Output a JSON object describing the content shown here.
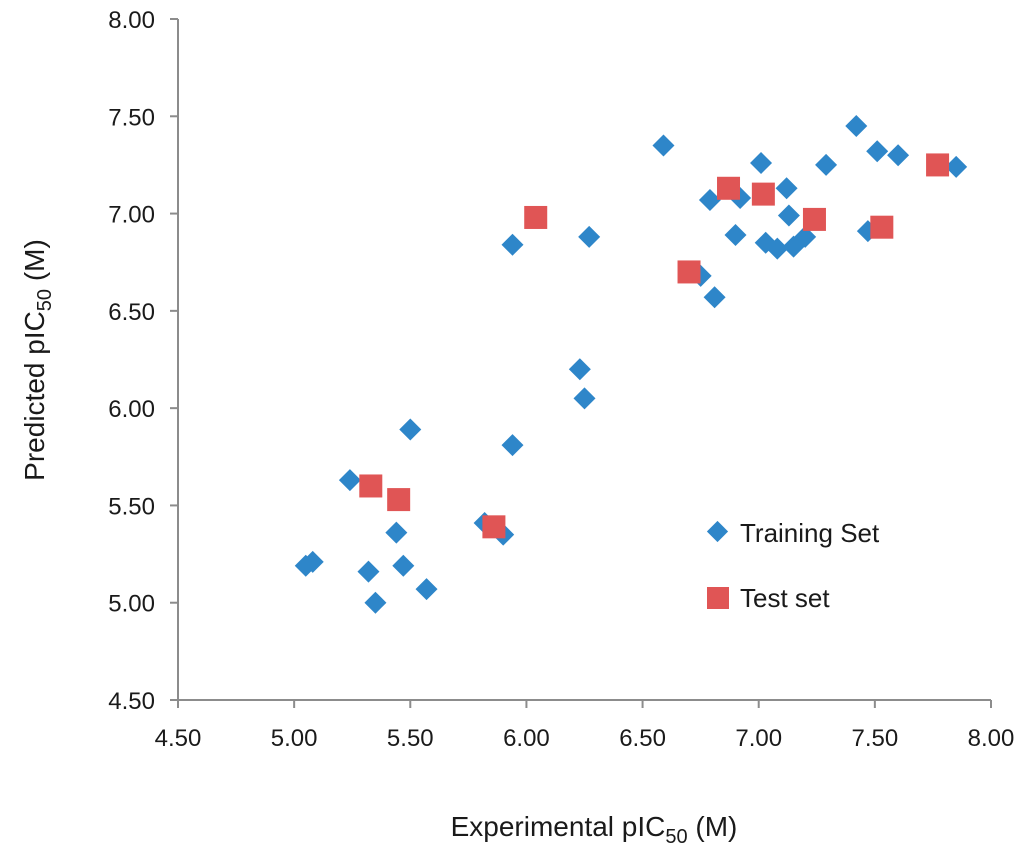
{
  "chart_data": {
    "type": "scatter",
    "xlabel": {
      "prefix": "Experimental pIC",
      "sub": "50",
      "suffix": " (M)"
    },
    "ylabel": {
      "prefix": "Predicted pIC",
      "sub": "50",
      "suffix": " (M)"
    },
    "xlim": [
      4.5,
      8.0
    ],
    "ylim": [
      4.5,
      8.0
    ],
    "xticks": [
      "4.50",
      "5.00",
      "5.50",
      "6.00",
      "6.50",
      "7.00",
      "7.50",
      "8.00"
    ],
    "yticks": [
      "4.50",
      "5.00",
      "5.50",
      "6.00",
      "6.50",
      "7.00",
      "7.50",
      "8.00"
    ],
    "grid": false,
    "legend_position": "right-bottom",
    "series": [
      {
        "name": "Training Set",
        "marker": "diamond",
        "color": "#2E86C9",
        "points": [
          [
            5.05,
            5.19
          ],
          [
            5.08,
            5.21
          ],
          [
            5.24,
            5.63
          ],
          [
            5.32,
            5.16
          ],
          [
            5.35,
            5.0
          ],
          [
            5.44,
            5.36
          ],
          [
            5.47,
            5.19
          ],
          [
            5.5,
            5.89
          ],
          [
            5.57,
            5.07
          ],
          [
            5.82,
            5.41
          ],
          [
            5.9,
            5.35
          ],
          [
            5.94,
            5.81
          ],
          [
            5.94,
            6.84
          ],
          [
            6.23,
            6.2
          ],
          [
            6.25,
            6.05
          ],
          [
            6.27,
            6.88
          ],
          [
            6.59,
            7.35
          ],
          [
            6.75,
            6.68
          ],
          [
            6.79,
            7.07
          ],
          [
            6.81,
            6.57
          ],
          [
            6.9,
            6.89
          ],
          [
            6.92,
            7.08
          ],
          [
            7.01,
            7.26
          ],
          [
            7.03,
            6.85
          ],
          [
            7.08,
            6.82
          ],
          [
            7.12,
            7.13
          ],
          [
            7.13,
            6.99
          ],
          [
            7.15,
            6.83
          ],
          [
            7.2,
            6.88
          ],
          [
            7.29,
            7.25
          ],
          [
            7.42,
            7.45
          ],
          [
            7.47,
            6.91
          ],
          [
            7.51,
            7.32
          ],
          [
            7.6,
            7.3
          ],
          [
            7.85,
            7.24
          ]
        ]
      },
      {
        "name": "Test set",
        "marker": "square",
        "color": "#E05555",
        "points": [
          [
            5.33,
            5.6
          ],
          [
            5.45,
            5.53
          ],
          [
            5.86,
            5.39
          ],
          [
            6.04,
            6.98
          ],
          [
            6.7,
            6.7
          ],
          [
            6.87,
            7.13
          ],
          [
            7.02,
            7.1
          ],
          [
            7.24,
            6.97
          ],
          [
            7.53,
            6.93
          ],
          [
            7.77,
            7.25
          ]
        ]
      }
    ]
  }
}
